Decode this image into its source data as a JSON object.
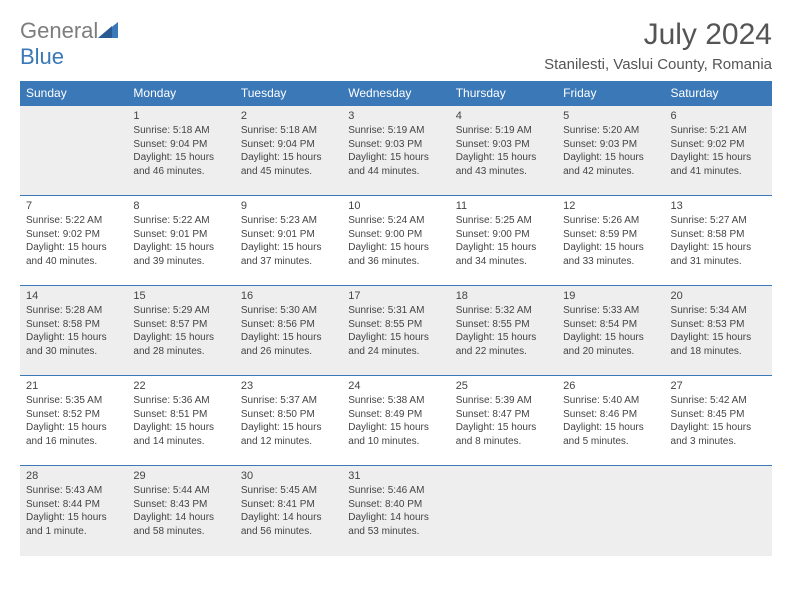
{
  "logo": {
    "text1": "General",
    "text2": "Blue"
  },
  "title": "July 2024",
  "subtitle": "Stanilesti, Vaslui County, Romania",
  "colors": {
    "header_bg": "#3a78b8",
    "header_text": "#ffffff",
    "alt_row_bg": "#eeeeee",
    "text": "#444444",
    "logo_gray": "#7d7d7d",
    "logo_blue": "#3a78b8",
    "page_bg": "#ffffff",
    "cell_border": "#3a78b8"
  },
  "day_headers": [
    "Sunday",
    "Monday",
    "Tuesday",
    "Wednesday",
    "Thursday",
    "Friday",
    "Saturday"
  ],
  "weeks": [
    [
      null,
      {
        "n": "1",
        "sr": "5:18 AM",
        "ss": "9:04 PM",
        "dl": "15 hours and 46 minutes."
      },
      {
        "n": "2",
        "sr": "5:18 AM",
        "ss": "9:04 PM",
        "dl": "15 hours and 45 minutes."
      },
      {
        "n": "3",
        "sr": "5:19 AM",
        "ss": "9:03 PM",
        "dl": "15 hours and 44 minutes."
      },
      {
        "n": "4",
        "sr": "5:19 AM",
        "ss": "9:03 PM",
        "dl": "15 hours and 43 minutes."
      },
      {
        "n": "5",
        "sr": "5:20 AM",
        "ss": "9:03 PM",
        "dl": "15 hours and 42 minutes."
      },
      {
        "n": "6",
        "sr": "5:21 AM",
        "ss": "9:02 PM",
        "dl": "15 hours and 41 minutes."
      }
    ],
    [
      {
        "n": "7",
        "sr": "5:22 AM",
        "ss": "9:02 PM",
        "dl": "15 hours and 40 minutes."
      },
      {
        "n": "8",
        "sr": "5:22 AM",
        "ss": "9:01 PM",
        "dl": "15 hours and 39 minutes."
      },
      {
        "n": "9",
        "sr": "5:23 AM",
        "ss": "9:01 PM",
        "dl": "15 hours and 37 minutes."
      },
      {
        "n": "10",
        "sr": "5:24 AM",
        "ss": "9:00 PM",
        "dl": "15 hours and 36 minutes."
      },
      {
        "n": "11",
        "sr": "5:25 AM",
        "ss": "9:00 PM",
        "dl": "15 hours and 34 minutes."
      },
      {
        "n": "12",
        "sr": "5:26 AM",
        "ss": "8:59 PM",
        "dl": "15 hours and 33 minutes."
      },
      {
        "n": "13",
        "sr": "5:27 AM",
        "ss": "8:58 PM",
        "dl": "15 hours and 31 minutes."
      }
    ],
    [
      {
        "n": "14",
        "sr": "5:28 AM",
        "ss": "8:58 PM",
        "dl": "15 hours and 30 minutes."
      },
      {
        "n": "15",
        "sr": "5:29 AM",
        "ss": "8:57 PM",
        "dl": "15 hours and 28 minutes."
      },
      {
        "n": "16",
        "sr": "5:30 AM",
        "ss": "8:56 PM",
        "dl": "15 hours and 26 minutes."
      },
      {
        "n": "17",
        "sr": "5:31 AM",
        "ss": "8:55 PM",
        "dl": "15 hours and 24 minutes."
      },
      {
        "n": "18",
        "sr": "5:32 AM",
        "ss": "8:55 PM",
        "dl": "15 hours and 22 minutes."
      },
      {
        "n": "19",
        "sr": "5:33 AM",
        "ss": "8:54 PM",
        "dl": "15 hours and 20 minutes."
      },
      {
        "n": "20",
        "sr": "5:34 AM",
        "ss": "8:53 PM",
        "dl": "15 hours and 18 minutes."
      }
    ],
    [
      {
        "n": "21",
        "sr": "5:35 AM",
        "ss": "8:52 PM",
        "dl": "15 hours and 16 minutes."
      },
      {
        "n": "22",
        "sr": "5:36 AM",
        "ss": "8:51 PM",
        "dl": "15 hours and 14 minutes."
      },
      {
        "n": "23",
        "sr": "5:37 AM",
        "ss": "8:50 PM",
        "dl": "15 hours and 12 minutes."
      },
      {
        "n": "24",
        "sr": "5:38 AM",
        "ss": "8:49 PM",
        "dl": "15 hours and 10 minutes."
      },
      {
        "n": "25",
        "sr": "5:39 AM",
        "ss": "8:47 PM",
        "dl": "15 hours and 8 minutes."
      },
      {
        "n": "26",
        "sr": "5:40 AM",
        "ss": "8:46 PM",
        "dl": "15 hours and 5 minutes."
      },
      {
        "n": "27",
        "sr": "5:42 AM",
        "ss": "8:45 PM",
        "dl": "15 hours and 3 minutes."
      }
    ],
    [
      {
        "n": "28",
        "sr": "5:43 AM",
        "ss": "8:44 PM",
        "dl": "15 hours and 1 minute."
      },
      {
        "n": "29",
        "sr": "5:44 AM",
        "ss": "8:43 PM",
        "dl": "14 hours and 58 minutes."
      },
      {
        "n": "30",
        "sr": "5:45 AM",
        "ss": "8:41 PM",
        "dl": "14 hours and 56 minutes."
      },
      {
        "n": "31",
        "sr": "5:46 AM",
        "ss": "8:40 PM",
        "dl": "14 hours and 53 minutes."
      },
      null,
      null,
      null
    ]
  ],
  "labels": {
    "sunrise": "Sunrise: ",
    "sunset": "Sunset: ",
    "daylight": "Daylight: "
  }
}
